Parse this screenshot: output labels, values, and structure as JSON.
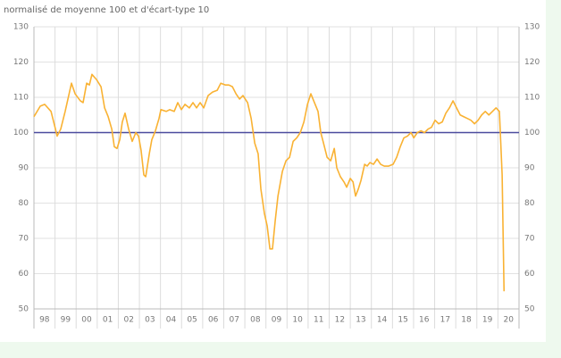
{
  "chart_data": {
    "type": "line",
    "subtitle": "normalisé de moyenne 100 et d'écart-type 10",
    "xlim": [
      1998,
      2021
    ],
    "xticks": [
      {
        "value": 1998,
        "label": "98"
      },
      {
        "value": 1999,
        "label": "99"
      },
      {
        "value": 2000,
        "label": "00"
      },
      {
        "value": 2001,
        "label": "01"
      },
      {
        "value": 2002,
        "label": "02"
      },
      {
        "value": 2003,
        "label": "03"
      },
      {
        "value": 2004,
        "label": "04"
      },
      {
        "value": 2005,
        "label": "05"
      },
      {
        "value": 2006,
        "label": "06"
      },
      {
        "value": 2007,
        "label": "07"
      },
      {
        "value": 2008,
        "label": "08"
      },
      {
        "value": 2009,
        "label": "09"
      },
      {
        "value": 2010,
        "label": "10"
      },
      {
        "value": 2011,
        "label": "11"
      },
      {
        "value": 2012,
        "label": "12"
      },
      {
        "value": 2013,
        "label": "13"
      },
      {
        "value": 2014,
        "label": "14"
      },
      {
        "value": 2015,
        "label": "15"
      },
      {
        "value": 2016,
        "label": "16"
      },
      {
        "value": 2017,
        "label": "17"
      },
      {
        "value": 2018,
        "label": "18"
      },
      {
        "value": 2019,
        "label": "19"
      },
      {
        "value": 2020,
        "label": "20"
      }
    ],
    "ylim": [
      50,
      130
    ],
    "yticks": [
      50,
      60,
      70,
      80,
      90,
      100,
      110,
      120,
      130
    ],
    "grid": true,
    "reference_line": {
      "value": 100,
      "color": "#4b4b9e"
    },
    "x": [
      1998.0,
      1998.3,
      1998.51,
      1998.81,
      1999.02,
      1999.1,
      1999.27,
      1999.48,
      1999.78,
      1999.95,
      2000.2,
      2000.33,
      2000.5,
      2000.63,
      2000.75,
      2000.97,
      2001.18,
      2001.35,
      2001.52,
      2001.69,
      2001.81,
      2001.94,
      2002.07,
      2002.19,
      2002.32,
      2002.49,
      2002.66,
      2002.83,
      2002.96,
      2003.08,
      2003.21,
      2003.3,
      2003.47,
      2003.59,
      2003.76,
      2003.93,
      2004.02,
      2004.27,
      2004.44,
      2004.65,
      2004.82,
      2004.99,
      2005.16,
      2005.37,
      2005.54,
      2005.71,
      2005.88,
      2006.05,
      2006.26,
      2006.47,
      2006.69,
      2006.86,
      2007.07,
      2007.24,
      2007.41,
      2007.58,
      2007.75,
      2007.91,
      2008.13,
      2008.3,
      2008.47,
      2008.63,
      2008.76,
      2008.93,
      2009.06,
      2009.19,
      2009.31,
      2009.44,
      2009.57,
      2009.78,
      2009.95,
      2010.12,
      2010.29,
      2010.46,
      2010.63,
      2010.8,
      2010.97,
      2011.13,
      2011.3,
      2011.47,
      2011.6,
      2011.73,
      2011.9,
      2012.07,
      2012.24,
      2012.36,
      2012.53,
      2012.7,
      2012.83,
      2013.0,
      2013.13,
      2013.25,
      2013.38,
      2013.51,
      2013.68,
      2013.8,
      2013.93,
      2014.1,
      2014.27,
      2014.44,
      2014.61,
      2014.82,
      2015.03,
      2015.2,
      2015.37,
      2015.54,
      2015.71,
      2015.88,
      2016.01,
      2016.18,
      2016.35,
      2016.52,
      2016.69,
      2016.85,
      2017.02,
      2017.19,
      2017.36,
      2017.53,
      2017.7,
      2017.87,
      2018.04,
      2018.21,
      2018.38,
      2018.55,
      2018.72,
      2018.89,
      2019.06,
      2019.23,
      2019.4,
      2019.57,
      2019.74,
      2019.91,
      2020.07,
      2020.2,
      2020.29
    ],
    "series": [
      {
        "color": "#f9b233",
        "values": [
          104.5,
          107.5,
          108,
          106,
          101,
          99,
          101,
          106,
          114,
          111,
          109,
          108.5,
          114,
          113.5,
          116.5,
          115,
          113,
          107,
          104.5,
          101,
          96,
          95.5,
          98,
          103,
          105.5,
          101,
          97.5,
          100,
          99,
          95,
          88,
          87.5,
          94,
          98,
          100.5,
          104,
          106.5,
          106,
          106.5,
          106,
          108.5,
          106.5,
          108,
          107,
          108.5,
          107,
          108.5,
          107,
          110.5,
          111.5,
          112,
          114,
          113.5,
          113.5,
          113,
          111,
          109.5,
          110.5,
          108.5,
          104,
          97,
          94,
          84,
          77,
          73.5,
          67,
          67,
          75,
          82,
          89,
          92,
          93,
          97.5,
          98.5,
          100,
          103,
          108,
          111,
          108.5,
          106,
          100,
          97,
          93,
          92,
          95.5,
          90,
          87.5,
          86,
          84.5,
          87,
          86,
          82,
          84,
          86.5,
          91,
          90.5,
          91.5,
          91,
          92.5,
          91,
          90.5,
          90.5,
          91,
          93,
          96,
          98.5,
          99,
          100,
          98.5,
          100,
          100.5,
          100,
          101,
          101.5,
          103.5,
          102.5,
          103,
          105.5,
          107,
          109,
          107,
          105,
          104.5,
          104,
          103.5,
          102.5,
          103.5,
          105,
          106,
          105,
          106,
          107,
          106,
          88,
          55
        ]
      }
    ]
  }
}
